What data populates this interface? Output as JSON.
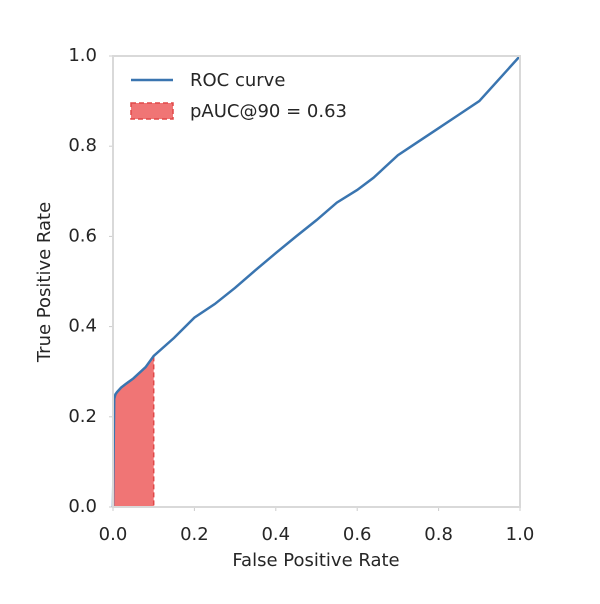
{
  "chart_data": {
    "type": "roc",
    "xlabel": "False Positive Rate",
    "ylabel": "True Positive Rate",
    "x": [
      0,
      0.003,
      0.006,
      0.01,
      0.02,
      0.03,
      0.05,
      0.08,
      0.1,
      0.15,
      0.2,
      0.25,
      0.3,
      0.35,
      0.4,
      0.45,
      0.5,
      0.55,
      0.6,
      0.64,
      0.7,
      0.75,
      0.8,
      0.85,
      0.9,
      0.95,
      1.0
    ],
    "series": [
      {
        "name": "ROC curve",
        "color": "#3a75b0",
        "values": [
          0,
          0.24,
          0.25,
          0.255,
          0.265,
          0.272,
          0.285,
          0.31,
          0.335,
          0.375,
          0.42,
          0.45,
          0.486,
          0.525,
          0.563,
          0.6,
          0.636,
          0.675,
          0.703,
          0.73,
          0.78,
          0.81,
          0.84,
          0.87,
          0.9,
          0.95,
          1.0
        ]
      },
      {
        "name": "pAUC@90 = 0.63",
        "color": "#f07575",
        "edge_color": "#e04848",
        "shade_x": [
          0,
          0.1
        ]
      }
    ],
    "xlim": [
      0,
      1
    ],
    "ylim": [
      0,
      1
    ],
    "xticks": [
      {
        "value": 0,
        "label": "0.0"
      },
      0.2,
      0.4,
      0.6,
      0.8,
      {
        "value": 1,
        "label": "1.0"
      }
    ],
    "yticks": [
      {
        "value": 0,
        "label": "0.0"
      },
      0.2,
      0.4,
      0.6,
      0.8,
      {
        "value": 1,
        "label": "1.0"
      }
    ],
    "grid": false,
    "legend": "upper-left"
  }
}
